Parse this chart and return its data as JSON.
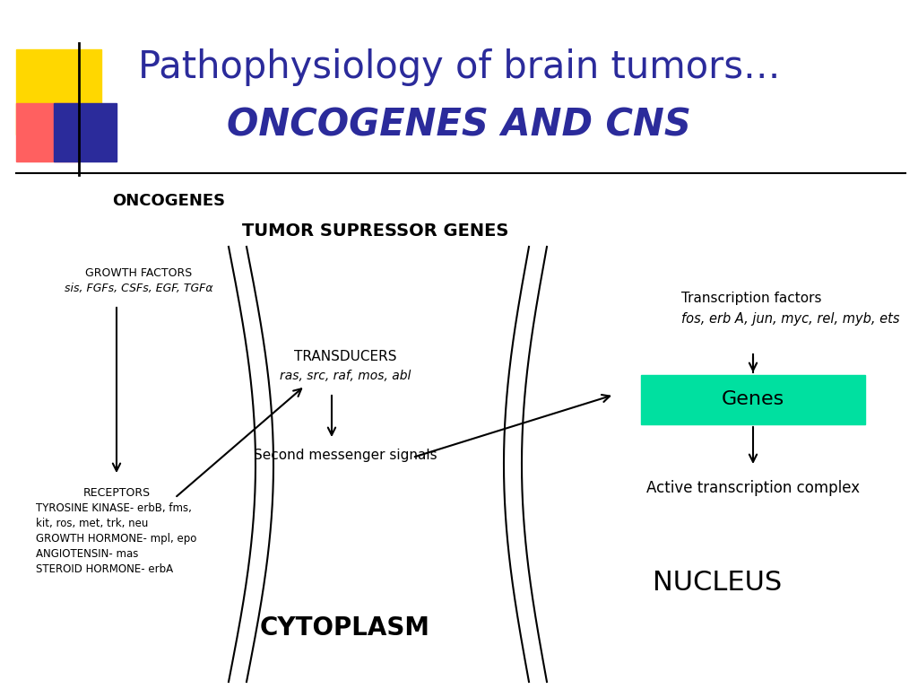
{
  "title_line1": "Pathophysiology of brain tumors…",
  "title_line2": "ONCOGENES AND CNS",
  "title_color": "#2B2B9B",
  "bg_color": "#FFFFFF",
  "header_label": "ONCOGENES",
  "subheader_label": "TUMOR SUPRESSOR GENES",
  "growth_factors_label": "GROWTH FACTORS",
  "growth_factors_sub": "sis, FGFs, CSFs, EGF, TGFα",
  "transducers_label": "TRANSDUCERS",
  "transducers_sub": "ras, src, raf, mos, abl",
  "second_messenger": "Second messenger signals",
  "receptors_label": "RECEPTORS",
  "receptors_sub": "TYROSINE KINASE- erbB, fms,\nkit, ros, met, trk, neu\nGROWTH HORMONE- mpl, epo\nANGIOTENSIN- mas\nSTEROID HORMONE- erbA",
  "cytoplasm_label": "CYTOPLASM",
  "transcription_factors_label": "Transcription factors",
  "transcription_factors_sub": "fos, erb A, jun, myc, rel, myb, ets",
  "genes_label": "Genes",
  "genes_box_color": "#00E0A0",
  "active_transcription": "Active transcription complex",
  "nucleus_label": "NUCLEUS",
  "yellow_color": "#FFD700",
  "red_color": "#FF6060",
  "blue_color": "#2B2B9B"
}
